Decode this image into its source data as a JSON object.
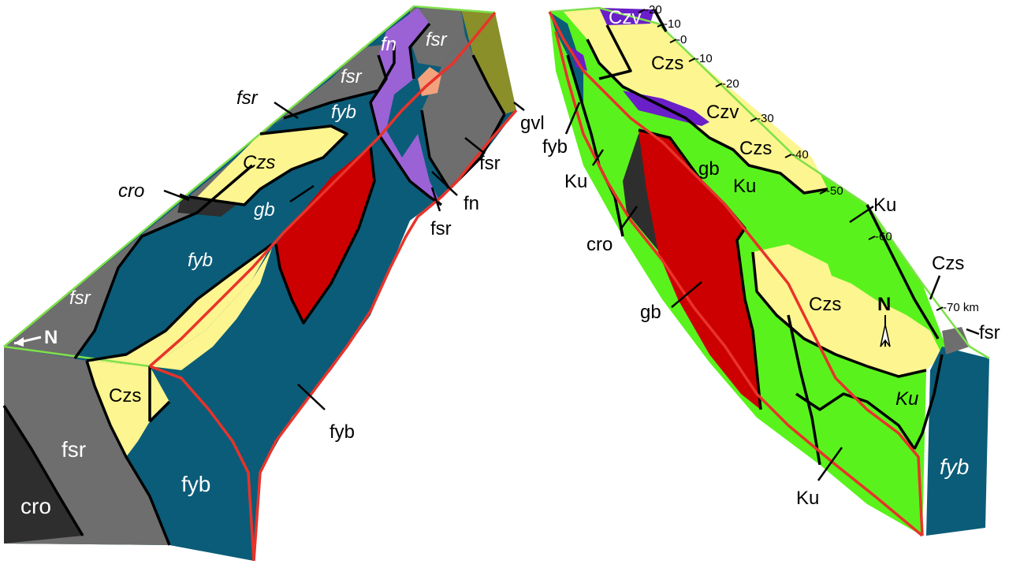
{
  "colors": {
    "fyb": "#0b5c78",
    "fsr": "#6e6e6e",
    "cro": "#2e2e2e",
    "Czs": "#fdf58f",
    "gb": "#cc0000",
    "fn": "#9b62d6",
    "gvl": "#8a8f2a",
    "Ku": "#5af21c",
    "Czv": "#6a1fc8",
    "fault": "#e8332a",
    "edge": "#7ee04a",
    "salmon": "#f3a27e"
  },
  "left_block": {
    "labels": {
      "fn": "fn",
      "fsr_top": "fsr",
      "fsr_upper": "fsr",
      "fsr_outside": "fsr",
      "fyb_top": "fyb",
      "Czs_top": "Czs",
      "cro_outside": "cro",
      "gb": "gb",
      "fyb_mid": "fyb",
      "fsr_left": "fsr",
      "north": "N",
      "Czs_front": "Czs",
      "fsr_front": "fsr",
      "cro_front": "cro",
      "fyb_front": "fyb",
      "fyb_callout": "fyb",
      "gvl_callout": "gvl",
      "fsr_right_callout": "fsr",
      "fn_callout": "fn",
      "fsr_low_callout": "fsr"
    }
  },
  "right_block": {
    "labels": {
      "Czv_top": "Czv",
      "Czs_top": "Czs",
      "Czv_mid": "Czv",
      "Czs_mid": "Czs",
      "gb_top": "gb",
      "Ku_top": "Ku",
      "Czs_big": "Czs",
      "north": "N",
      "Ku_front": "Ku",
      "fyb_front": "fyb",
      "fyb_callout": "fyb",
      "Ku_left_callout": "Ku",
      "cro_callout": "cro",
      "gb_callout": "gb",
      "Ku_bottom_callout": "Ku",
      "Ku_right_callout": "Ku",
      "Czs_right_callout": "Czs",
      "fsr_callout": "fsr"
    },
    "scale_ticks": [
      "-20",
      "-10",
      "-0",
      "-10",
      "-20",
      "-30",
      "-40",
      "-50",
      "-60",
      "-70 km"
    ]
  }
}
